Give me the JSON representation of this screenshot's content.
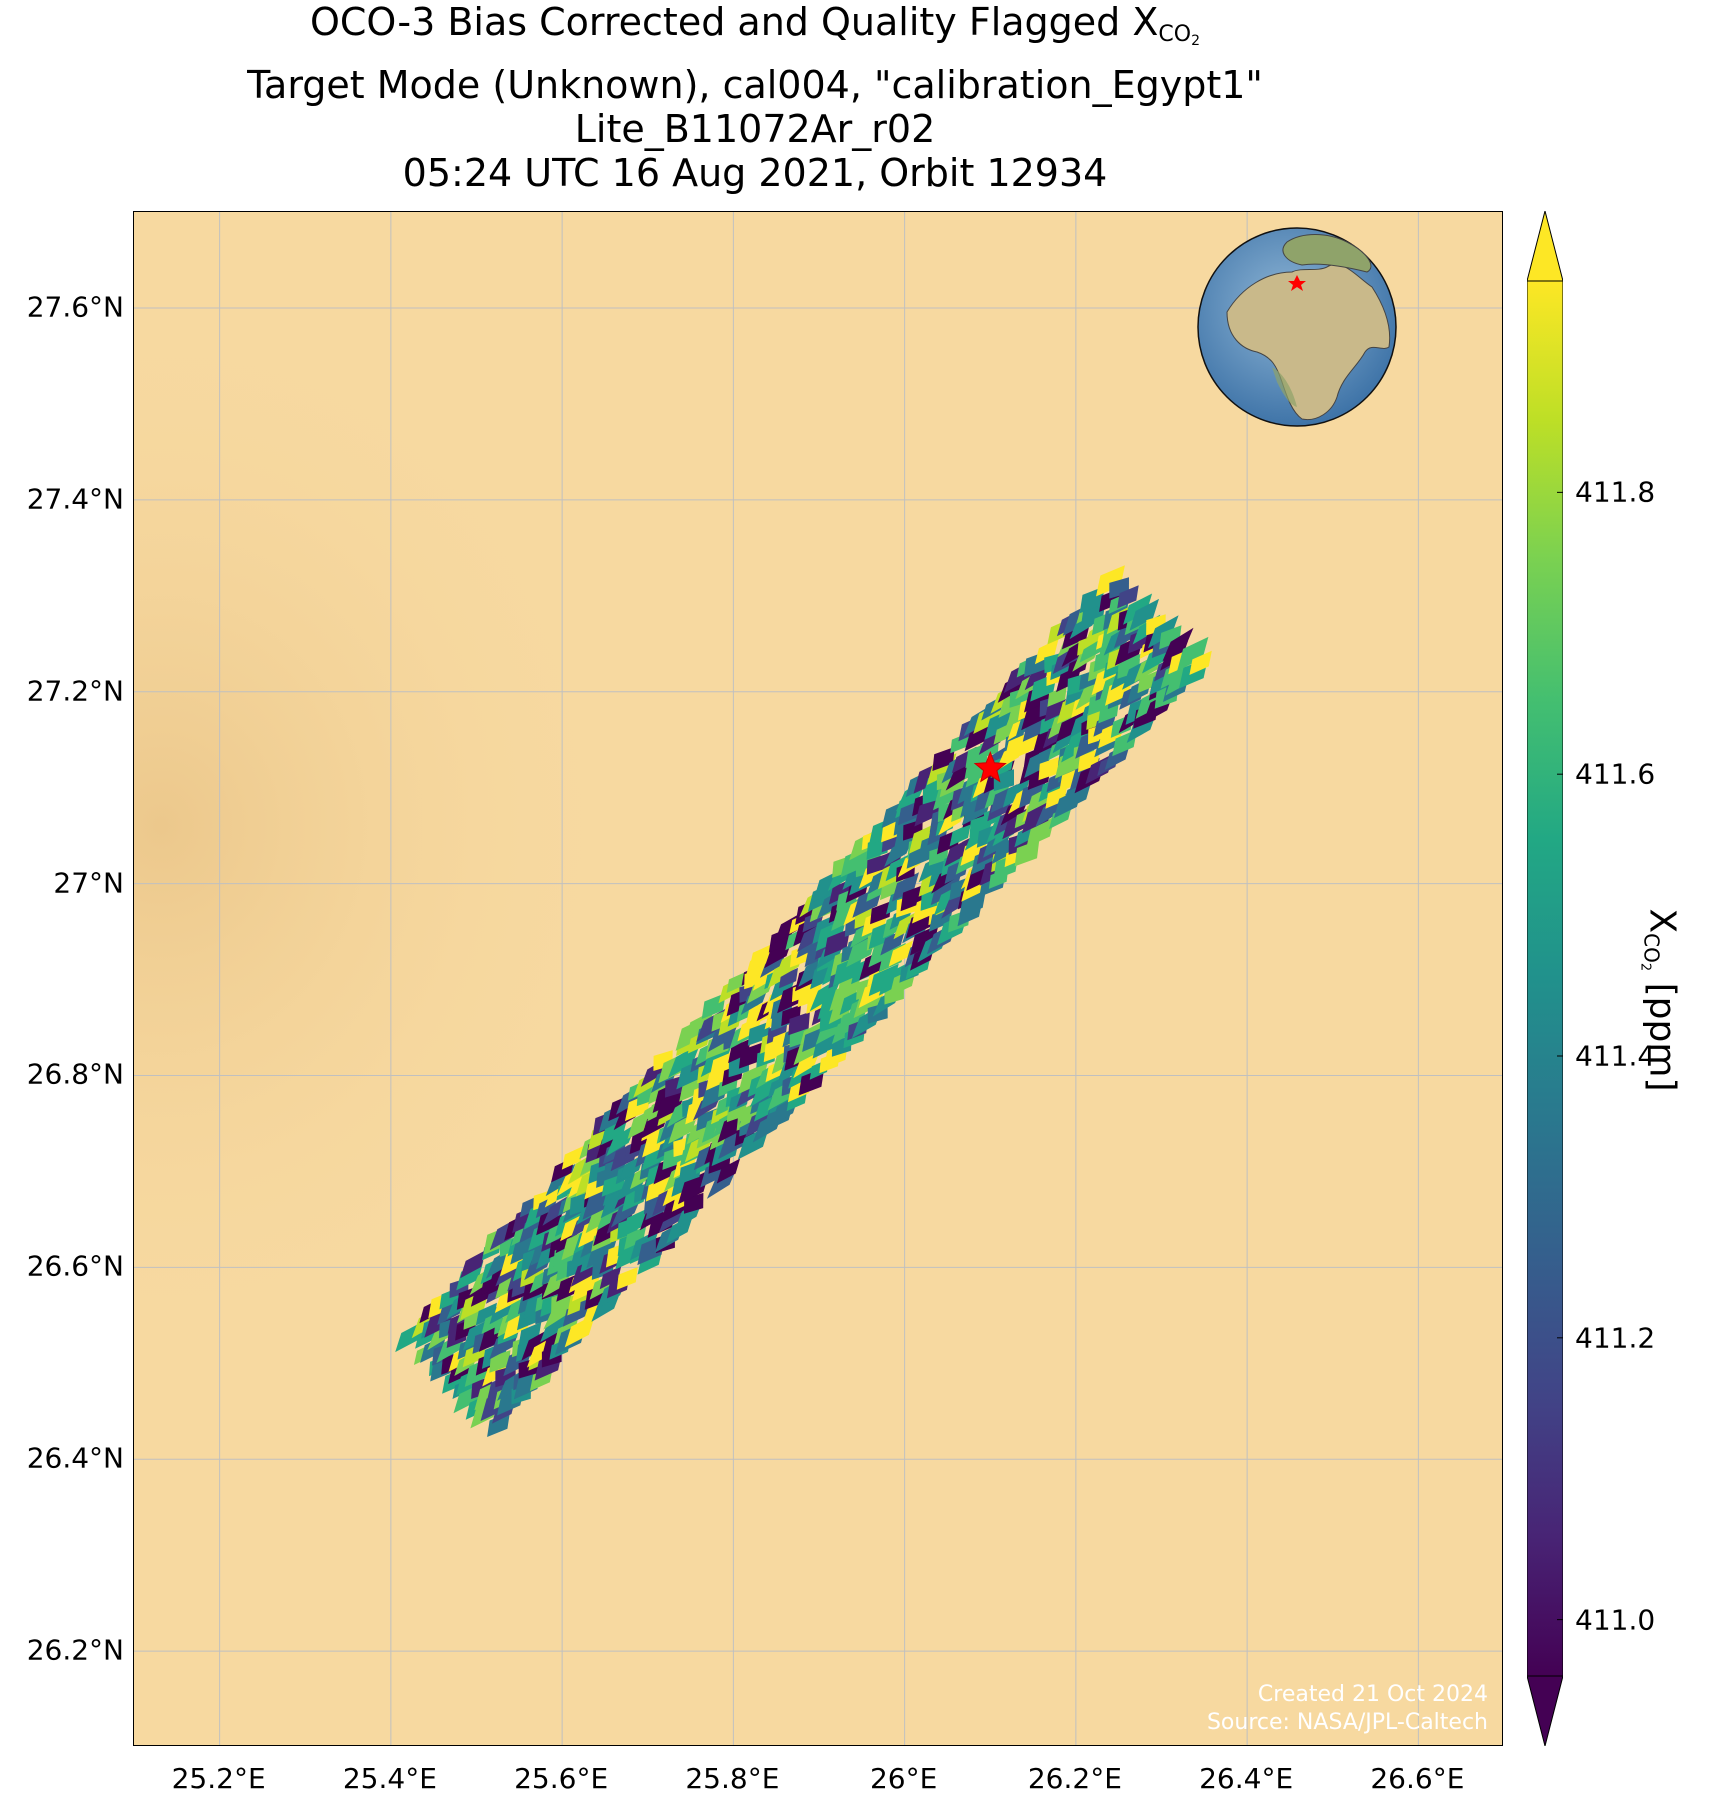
{
  "title": {
    "line1_prefix": "OCO-3 Bias Corrected and Quality Flagged X",
    "line1_sub": "CO",
    "line1_subsub": "2",
    "line2": "Target Mode (Unknown), cal004, \"calibration_Egypt1\"",
    "line3": "Lite_B11072Ar_r02",
    "line4": "05:24 UTC 16 Aug 2021, Orbit 12934"
  },
  "map": {
    "lon_ticks": [
      "25.2°E",
      "25.4°E",
      "25.6°E",
      "25.8°E",
      "26°E",
      "26.2°E",
      "26.4°E",
      "26.6°E"
    ],
    "lat_ticks": [
      "27.6°N",
      "27.4°N",
      "27.2°N",
      "27°N",
      "26.8°N",
      "26.6°N",
      "26.4°N",
      "26.2°N"
    ],
    "lon_range": [
      25.1,
      26.7
    ],
    "lat_range": [
      26.1,
      27.7
    ],
    "background_color": "#f7d9a0",
    "target": {
      "name": "calibration_Egypt1",
      "lon": 26.1,
      "lat": 27.12,
      "marker": "red-star"
    },
    "swath": {
      "start": {
        "lon": 25.47,
        "lat": 26.48
      },
      "end": {
        "lon": 26.3,
        "lat": 27.28
      }
    },
    "inset_globe": {
      "marker": "red-star",
      "region": "Egypt"
    },
    "credit_line1": "Created 21 Oct 2024",
    "credit_line2": "Source: NASA/JPL-Caltech"
  },
  "colorbar": {
    "colormap": "viridis",
    "ticks": [
      "411.0",
      "411.2",
      "411.4",
      "411.6",
      "411.8"
    ],
    "vmin": 410.96,
    "vmax": 411.95,
    "label_prefix": "X",
    "label_sub": "CO",
    "label_subsub": "2",
    "label_suffix": " [ppm]",
    "extend": "both"
  }
}
